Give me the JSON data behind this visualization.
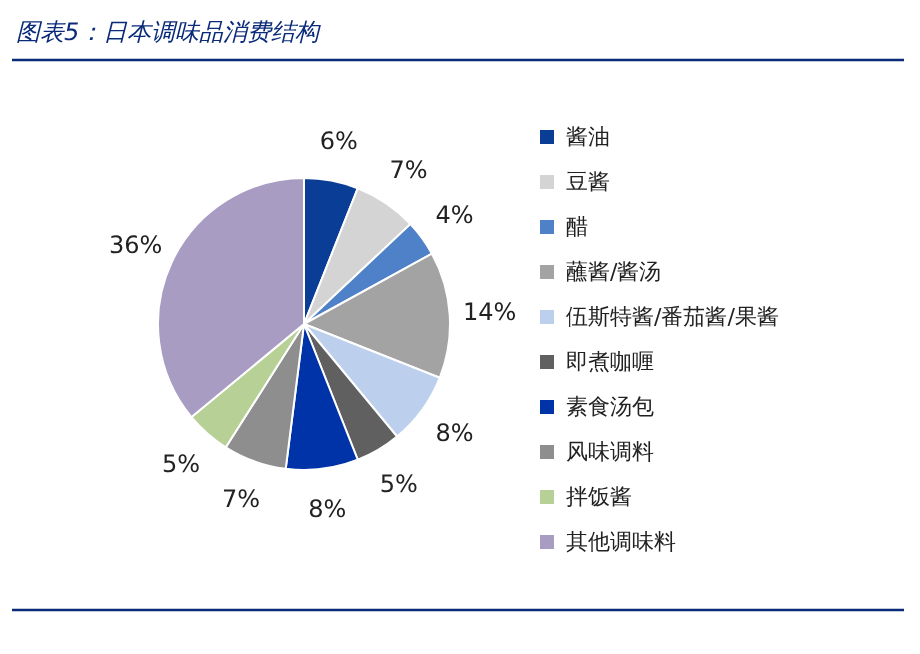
{
  "chart_data": {
    "type": "pie",
    "title": "图表5：日本调味品消费结构",
    "categories": [
      "酱油",
      "豆酱",
      "醋",
      "蘸酱/酱汤",
      "伍斯特酱/番茄酱/果酱",
      "即煮咖喱",
      "素食汤包",
      "风味调料",
      "拌饭酱",
      "其他调味料"
    ],
    "values": [
      6,
      7,
      4,
      14,
      8,
      5,
      8,
      7,
      5,
      36
    ],
    "colors": [
      "#0a3d96",
      "#d4d4d4",
      "#4f81c8",
      "#a3a3a3",
      "#bcd0ee",
      "#606060",
      "#0033a8",
      "#8e8e8e",
      "#b7d096",
      "#a99cc2"
    ],
    "value_labels": [
      "6%",
      "7%",
      "4%",
      "14%",
      "8%",
      "5%",
      "8%",
      "7%",
      "5%",
      "36%"
    ],
    "legend": "right"
  }
}
